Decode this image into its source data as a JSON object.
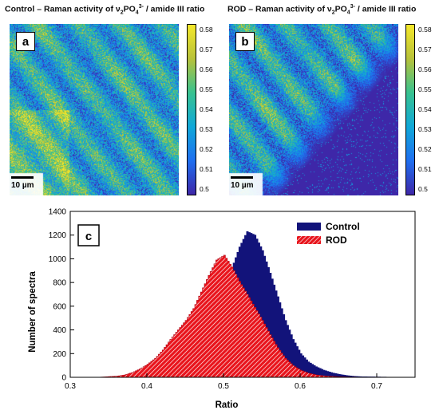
{
  "panel_a": {
    "title_pre": "Control – Raman activity of ν",
    "title_sub1": "2",
    "title_mid": "PO",
    "title_sub2": "4",
    "title_sup": "3-",
    "title_post": " / amide III ratio",
    "letter": "a",
    "scalebar": "10 µm"
  },
  "panel_b": {
    "title_pre": "ROD – Raman activity of ν",
    "title_sub1": "2",
    "title_mid": "PO",
    "title_sub2": "4",
    "title_sup": "3-",
    "title_post": " / amide III ratio",
    "letter": "b",
    "scalebar": "10 µm"
  },
  "colorbar_ticks": [
    "0.58",
    "0.57",
    "0.56",
    "0.55",
    "0.54",
    "0.53",
    "0.52",
    "0.51",
    "0.5"
  ],
  "colormap": {
    "low": "#3e27a8",
    "mid": "#10a8d8",
    "high": "#f5e82a"
  },
  "panel_c_letter": "c",
  "chart_data": {
    "type": "area",
    "xlabel": "Ratio",
    "ylabel": "Number of spectra",
    "xlim": [
      0.3,
      0.75
    ],
    "ylim": [
      0,
      1400
    ],
    "xticks": [
      "0.3",
      "0.4",
      "0.5",
      "0.6",
      "0.7"
    ],
    "yticks": [
      "0",
      "200",
      "400",
      "600",
      "800",
      "1000",
      "1200",
      "1400"
    ],
    "legend": "top-right",
    "series": [
      {
        "name": "Control",
        "color": "#12137a",
        "x": [
          0.38,
          0.39,
          0.4,
          0.41,
          0.42,
          0.43,
          0.44,
          0.45,
          0.46,
          0.47,
          0.48,
          0.49,
          0.5,
          0.51,
          0.52,
          0.53,
          0.54,
          0.55,
          0.56,
          0.57,
          0.58,
          0.59,
          0.6,
          0.61,
          0.62,
          0.63,
          0.64,
          0.65,
          0.66,
          0.67,
          0.68,
          0.7,
          0.72,
          0.74
        ],
        "y": [
          2,
          5,
          10,
          20,
          35,
          55,
          90,
          140,
          220,
          320,
          430,
          560,
          720,
          920,
          1100,
          1230,
          1200,
          1070,
          880,
          680,
          480,
          320,
          200,
          130,
          90,
          60,
          40,
          25,
          15,
          8,
          5,
          3,
          1,
          0
        ]
      },
      {
        "name": "ROD",
        "color": "#e8141c",
        "x": [
          0.34,
          0.36,
          0.37,
          0.38,
          0.39,
          0.4,
          0.41,
          0.42,
          0.43,
          0.44,
          0.45,
          0.46,
          0.47,
          0.48,
          0.49,
          0.5,
          0.51,
          0.52,
          0.53,
          0.54,
          0.55,
          0.56,
          0.57,
          0.58,
          0.59,
          0.6,
          0.61,
          0.62,
          0.63,
          0.64,
          0.65,
          0.66,
          0.68,
          0.7
        ],
        "y": [
          2,
          10,
          20,
          40,
          70,
          110,
          160,
          230,
          320,
          400,
          480,
          580,
          720,
          860,
          990,
          1030,
          930,
          810,
          700,
          590,
          480,
          360,
          250,
          160,
          100,
          60,
          35,
          20,
          12,
          8,
          5,
          3,
          1,
          0
        ]
      }
    ]
  }
}
